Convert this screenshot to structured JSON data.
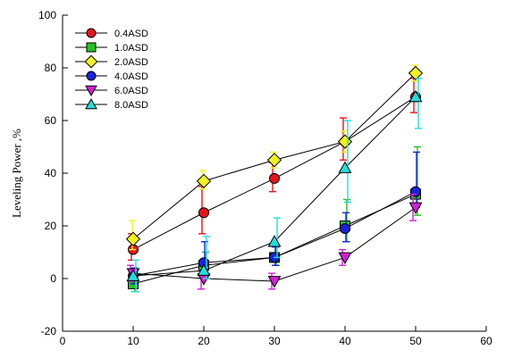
{
  "chart_data": {
    "type": "line",
    "title": "",
    "xlabel": "",
    "ylabel": "Leveling Power ,%",
    "xlim": [
      0,
      60
    ],
    "ylim": [
      -20,
      100
    ],
    "x_ticks": [
      0,
      10,
      20,
      30,
      40,
      50,
      60
    ],
    "y_ticks": [
      -20,
      0,
      20,
      40,
      60,
      80,
      100
    ],
    "grid": false,
    "legend_position": "top-left",
    "x": [
      10,
      20,
      30,
      40,
      50
    ],
    "series": [
      {
        "name": "0.4ASD",
        "marker": "circle",
        "color": "#e8141b",
        "values": [
          11,
          25,
          38,
          52,
          69
        ],
        "err_up": [
          6,
          10,
          6,
          9,
          7
        ],
        "err_down": [
          4,
          8,
          5,
          7,
          6
        ]
      },
      {
        "name": "1.0ASD",
        "marker": "square",
        "color": "#22c322",
        "values": [
          -2,
          5,
          8,
          20,
          32
        ],
        "err_up": [
          3,
          5,
          4,
          10,
          18
        ],
        "err_down": [
          3,
          4,
          3,
          6,
          8
        ]
      },
      {
        "name": "2.0ASD",
        "marker": "diamond",
        "color": "#f2f21e",
        "values": [
          15,
          37,
          45,
          52,
          78
        ],
        "err_up": [
          7,
          4,
          3,
          4,
          3
        ],
        "err_down": [
          4,
          3,
          3,
          4,
          3
        ]
      },
      {
        "name": "4.0ASD",
        "marker": "circle",
        "color": "#1a22e0",
        "values": [
          1,
          6,
          8,
          19,
          33
        ],
        "err_up": [
          3,
          8,
          4,
          6,
          15
        ],
        "err_down": [
          3,
          5,
          3,
          5,
          6
        ]
      },
      {
        "name": "6.0ASD",
        "marker": "triangle-down",
        "color": "#d41fd6",
        "values": [
          2,
          0,
          -1,
          8,
          27
        ],
        "err_up": [
          3,
          3,
          3,
          3,
          5
        ],
        "err_down": [
          3,
          4,
          3,
          3,
          5
        ]
      },
      {
        "name": "8.0ASD",
        "marker": "triangle-up",
        "color": "#22dede",
        "values": [
          1,
          3,
          14,
          42,
          69
        ],
        "err_up": [
          6,
          13,
          9,
          18,
          7
        ],
        "err_down": [
          6,
          3,
          6,
          13,
          12
        ]
      }
    ]
  }
}
